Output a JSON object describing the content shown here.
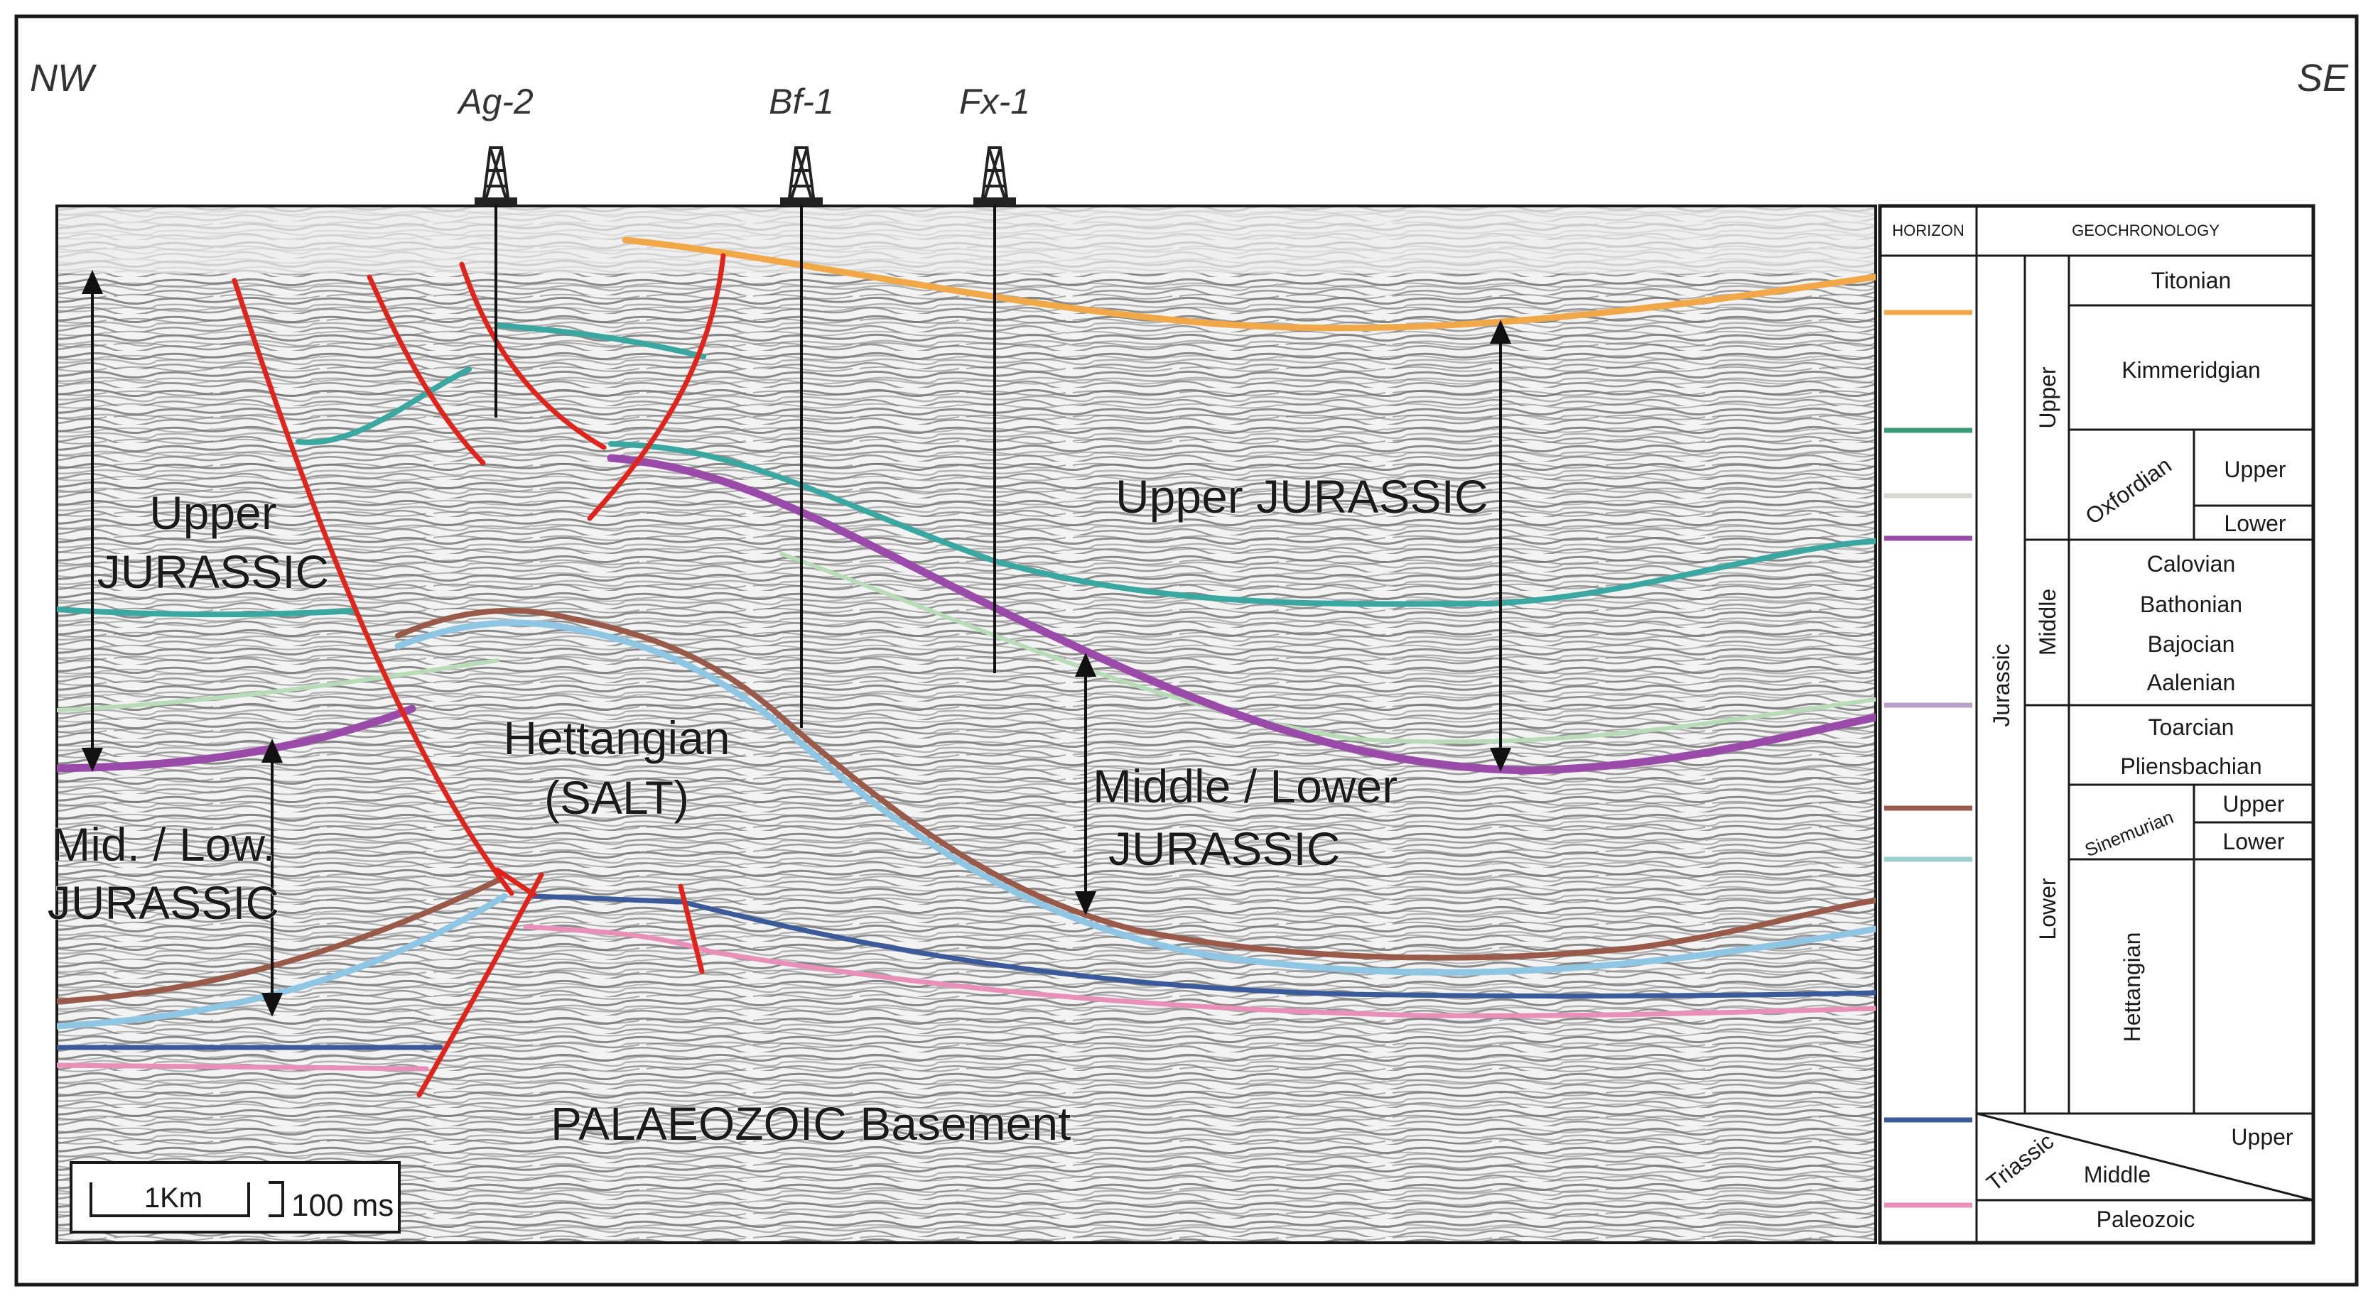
{
  "orientation": {
    "left": "NW",
    "right": "SE"
  },
  "wells": [
    "Ag-2",
    "Bf-1",
    "Fx-1"
  ],
  "section_labels": {
    "upper_jurassic_left": [
      "Upper",
      "JURASSIC"
    ],
    "upper_jurassic_right": "Upper JURASSIC",
    "hettangian_salt": [
      "Hettangian",
      "(SALT)"
    ],
    "mid_low_jurassic_left": [
      "Mid. / Low.",
      "JURASSIC"
    ],
    "middle_lower_jurassic_right": [
      "Middle / Lower",
      "JURASSIC"
    ],
    "palaeozoic": "PALAEOZOIC Basement"
  },
  "scale_bar": {
    "horizontal": "1Km",
    "vertical": "100 ms"
  },
  "legend": {
    "header_horizon": "HORIZON",
    "header_geochronology": "GEOCHRONOLOGY",
    "system": "Jurassic",
    "series": {
      "upper": "Upper",
      "middle": "Middle",
      "lower": "Lower",
      "triassic": "Triassic"
    },
    "stages": {
      "titonian": "Titonian",
      "kimmeridgian": "Kimmeridgian",
      "oxfordian": "Oxfordian",
      "oxfordian_upper": "Upper",
      "oxfordian_lower": "Lower",
      "calovian": "Calovian",
      "bathonian": "Bathonian",
      "bajocian": "Bajocian",
      "aalenian": "Aalenian",
      "toarcian": "Toarcian",
      "pliensbachian": "Pliensbachian",
      "sinemurian": "Sinemurian",
      "sinemurian_upper": "Upper",
      "sinemurian_lower": "Lower",
      "hettangian": "Hettangian",
      "triassic_upper": "Upper",
      "triassic_middle": "Middle",
      "paleozoic": "Paleozoic"
    },
    "horizon_colors": [
      "#f0a848",
      "#3a9a78",
      "#d8d8d0",
      "#9a4aa8",
      "#b8a0c8",
      "#9a5a4a",
      "#9ad0d0",
      "#3a5a9a",
      "#e890b8"
    ]
  },
  "colors": {
    "fault": "#e0241c",
    "orange": "#f0a848",
    "teal": "#3aa8a0",
    "purple": "#9a4aa8",
    "lightgreen": "#b8dcb8",
    "brown": "#9a5a4a",
    "lightblue": "#8ec6e4",
    "blue": "#3a5a9a",
    "pink": "#e890b8"
  }
}
